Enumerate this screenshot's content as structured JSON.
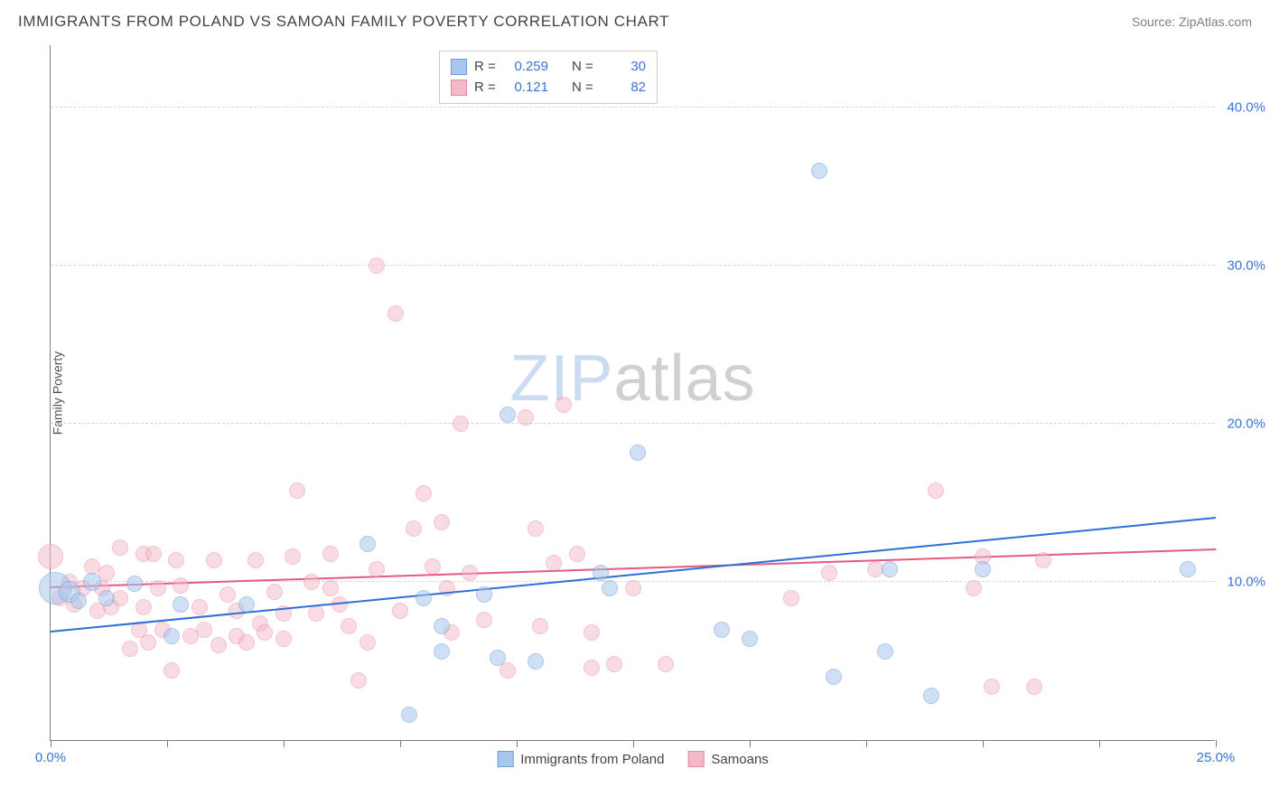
{
  "header": {
    "title": "IMMIGRANTS FROM POLAND VS SAMOAN FAMILY POVERTY CORRELATION CHART",
    "source": "Source: ZipAtlas.com"
  },
  "chart": {
    "type": "scatter",
    "y_axis_label": "Family Poverty",
    "watermark_part1": "ZIP",
    "watermark_part2": "atlas",
    "background_color": "#ffffff",
    "grid_color": "#d8d8d8",
    "axis_color": "#808080",
    "xlim": [
      0,
      25
    ],
    "ylim": [
      0,
      44
    ],
    "x_ticks": [
      0,
      2.5,
      5,
      7.5,
      10,
      12.5,
      15,
      17.5,
      20,
      22.5,
      25
    ],
    "x_tick_labels": {
      "0": "0.0%",
      "25": "25.0%"
    },
    "y_grid": [
      10,
      20,
      30,
      40
    ],
    "y_tick_labels": {
      "10": "10.0%",
      "20": "20.0%",
      "30": "30.0%",
      "40": "40.0%"
    },
    "title_fontsize": 17,
    "tick_fontsize": 15,
    "tick_color": "#3975d6",
    "series": [
      {
        "name": "Immigrants from Poland",
        "fill": "#a9c7ec",
        "stroke": "#6f9fd8",
        "trend_color": "#2e6fd6",
        "r_label": "R =",
        "r_value": "0.259",
        "n_label": "N =",
        "n_value": "30",
        "trend": {
          "x1": 0,
          "y1": 6.8,
          "x2": 25,
          "y2": 14.0
        },
        "marker_radius": 9,
        "fill_opacity": 0.55,
        "points": [
          [
            0.1,
            9.6,
            18
          ],
          [
            0.4,
            9.4,
            12
          ],
          [
            0.9,
            10.0,
            10
          ],
          [
            0.6,
            8.8,
            9
          ],
          [
            1.8,
            9.9,
            9
          ],
          [
            2.6,
            6.6,
            9
          ],
          [
            2.8,
            8.6,
            9
          ],
          [
            6.8,
            12.4,
            9
          ],
          [
            7.7,
            1.6,
            9
          ],
          [
            8.0,
            9.0,
            9
          ],
          [
            8.4,
            5.6,
            9
          ],
          [
            8.4,
            7.2,
            9
          ],
          [
            9.3,
            9.2,
            9
          ],
          [
            9.6,
            5.2,
            9
          ],
          [
            9.8,
            20.6,
            9
          ],
          [
            10.4,
            5.0,
            9
          ],
          [
            11.8,
            10.6,
            9
          ],
          [
            12.0,
            9.6,
            9
          ],
          [
            12.6,
            18.2,
            9
          ],
          [
            14.4,
            7.0,
            9
          ],
          [
            15.0,
            6.4,
            9
          ],
          [
            16.5,
            36.0,
            9
          ],
          [
            16.8,
            4.0,
            9
          ],
          [
            17.9,
            5.6,
            9
          ],
          [
            18.0,
            10.8,
            9
          ],
          [
            18.9,
            2.8,
            9
          ],
          [
            20.0,
            10.8,
            9
          ],
          [
            24.4,
            10.8,
            9
          ],
          [
            1.2,
            9.0,
            9
          ],
          [
            4.2,
            8.6,
            9
          ]
        ]
      },
      {
        "name": "Samoans",
        "fill": "#f4b9c8",
        "stroke": "#e78aa3",
        "trend_color": "#e35a84",
        "r_label": "R =",
        "r_value": "0.121",
        "n_label": "N =",
        "n_value": "82",
        "trend": {
          "x1": 0,
          "y1": 9.6,
          "x2": 25,
          "y2": 12.0
        },
        "marker_radius": 9,
        "fill_opacity": 0.5,
        "points": [
          [
            0.0,
            11.6,
            14
          ],
          [
            0.2,
            9.0,
            9
          ],
          [
            0.4,
            10.0,
            9
          ],
          [
            0.7,
            9.6,
            9
          ],
          [
            0.9,
            11.0,
            9
          ],
          [
            1.0,
            8.2,
            9
          ],
          [
            1.1,
            9.6,
            9
          ],
          [
            1.3,
            8.4,
            9
          ],
          [
            1.5,
            12.2,
            9
          ],
          [
            1.5,
            9.0,
            9
          ],
          [
            1.7,
            5.8,
            9
          ],
          [
            1.9,
            7.0,
            9
          ],
          [
            2.0,
            11.8,
            9
          ],
          [
            2.0,
            8.4,
            9
          ],
          [
            2.2,
            11.8,
            9
          ],
          [
            2.3,
            9.6,
            9
          ],
          [
            2.4,
            7.0,
            9
          ],
          [
            2.6,
            4.4,
            9
          ],
          [
            2.7,
            11.4,
            9
          ],
          [
            2.8,
            9.8,
            9
          ],
          [
            3.0,
            6.6,
            9
          ],
          [
            3.2,
            8.4,
            9
          ],
          [
            3.3,
            7.0,
            9
          ],
          [
            3.5,
            11.4,
            9
          ],
          [
            3.8,
            9.2,
            9
          ],
          [
            4.0,
            6.6,
            9
          ],
          [
            4.0,
            8.2,
            9
          ],
          [
            4.2,
            6.2,
            9
          ],
          [
            4.4,
            11.4,
            9
          ],
          [
            4.5,
            7.4,
            9
          ],
          [
            4.6,
            6.8,
            9
          ],
          [
            5.0,
            8.0,
            9
          ],
          [
            5.0,
            6.4,
            9
          ],
          [
            5.3,
            15.8,
            9
          ],
          [
            5.6,
            10.0,
            9
          ],
          [
            5.7,
            8.0,
            9
          ],
          [
            6.0,
            9.6,
            9
          ],
          [
            6.0,
            11.8,
            9
          ],
          [
            6.4,
            7.2,
            9
          ],
          [
            6.6,
            3.8,
            9
          ],
          [
            6.8,
            6.2,
            9
          ],
          [
            7.0,
            10.8,
            9
          ],
          [
            7.0,
            30.0,
            9
          ],
          [
            7.4,
            27.0,
            9
          ],
          [
            7.5,
            8.2,
            9
          ],
          [
            7.8,
            13.4,
            9
          ],
          [
            8.0,
            15.6,
            9
          ],
          [
            8.2,
            11.0,
            9
          ],
          [
            8.4,
            13.8,
            9
          ],
          [
            8.5,
            9.6,
            9
          ],
          [
            8.6,
            6.8,
            9
          ],
          [
            8.8,
            20.0,
            9
          ],
          [
            9.0,
            10.6,
            9
          ],
          [
            9.3,
            7.6,
            9
          ],
          [
            9.8,
            4.4,
            9
          ],
          [
            10.2,
            20.4,
            9
          ],
          [
            10.4,
            13.4,
            9
          ],
          [
            10.5,
            7.2,
            9
          ],
          [
            10.8,
            11.2,
            9
          ],
          [
            11.0,
            21.2,
            9
          ],
          [
            11.3,
            11.8,
            9
          ],
          [
            11.6,
            6.8,
            9
          ],
          [
            11.6,
            4.6,
            9
          ],
          [
            12.1,
            4.8,
            9
          ],
          [
            12.5,
            9.6,
            9
          ],
          [
            13.2,
            4.8,
            9
          ],
          [
            15.9,
            9.0,
            9
          ],
          [
            16.7,
            10.6,
            9
          ],
          [
            17.7,
            10.8,
            9
          ],
          [
            19.0,
            15.8,
            9
          ],
          [
            19.8,
            9.6,
            9
          ],
          [
            20.0,
            11.6,
            9
          ],
          [
            20.2,
            3.4,
            9
          ],
          [
            21.1,
            3.4,
            9
          ],
          [
            21.3,
            11.4,
            9
          ],
          [
            4.8,
            9.4,
            9
          ],
          [
            0.5,
            8.6,
            9
          ],
          [
            1.2,
            10.6,
            9
          ],
          [
            2.1,
            6.2,
            9
          ],
          [
            3.6,
            6.0,
            9
          ],
          [
            5.2,
            11.6,
            9
          ],
          [
            6.2,
            8.6,
            9
          ]
        ]
      }
    ]
  }
}
